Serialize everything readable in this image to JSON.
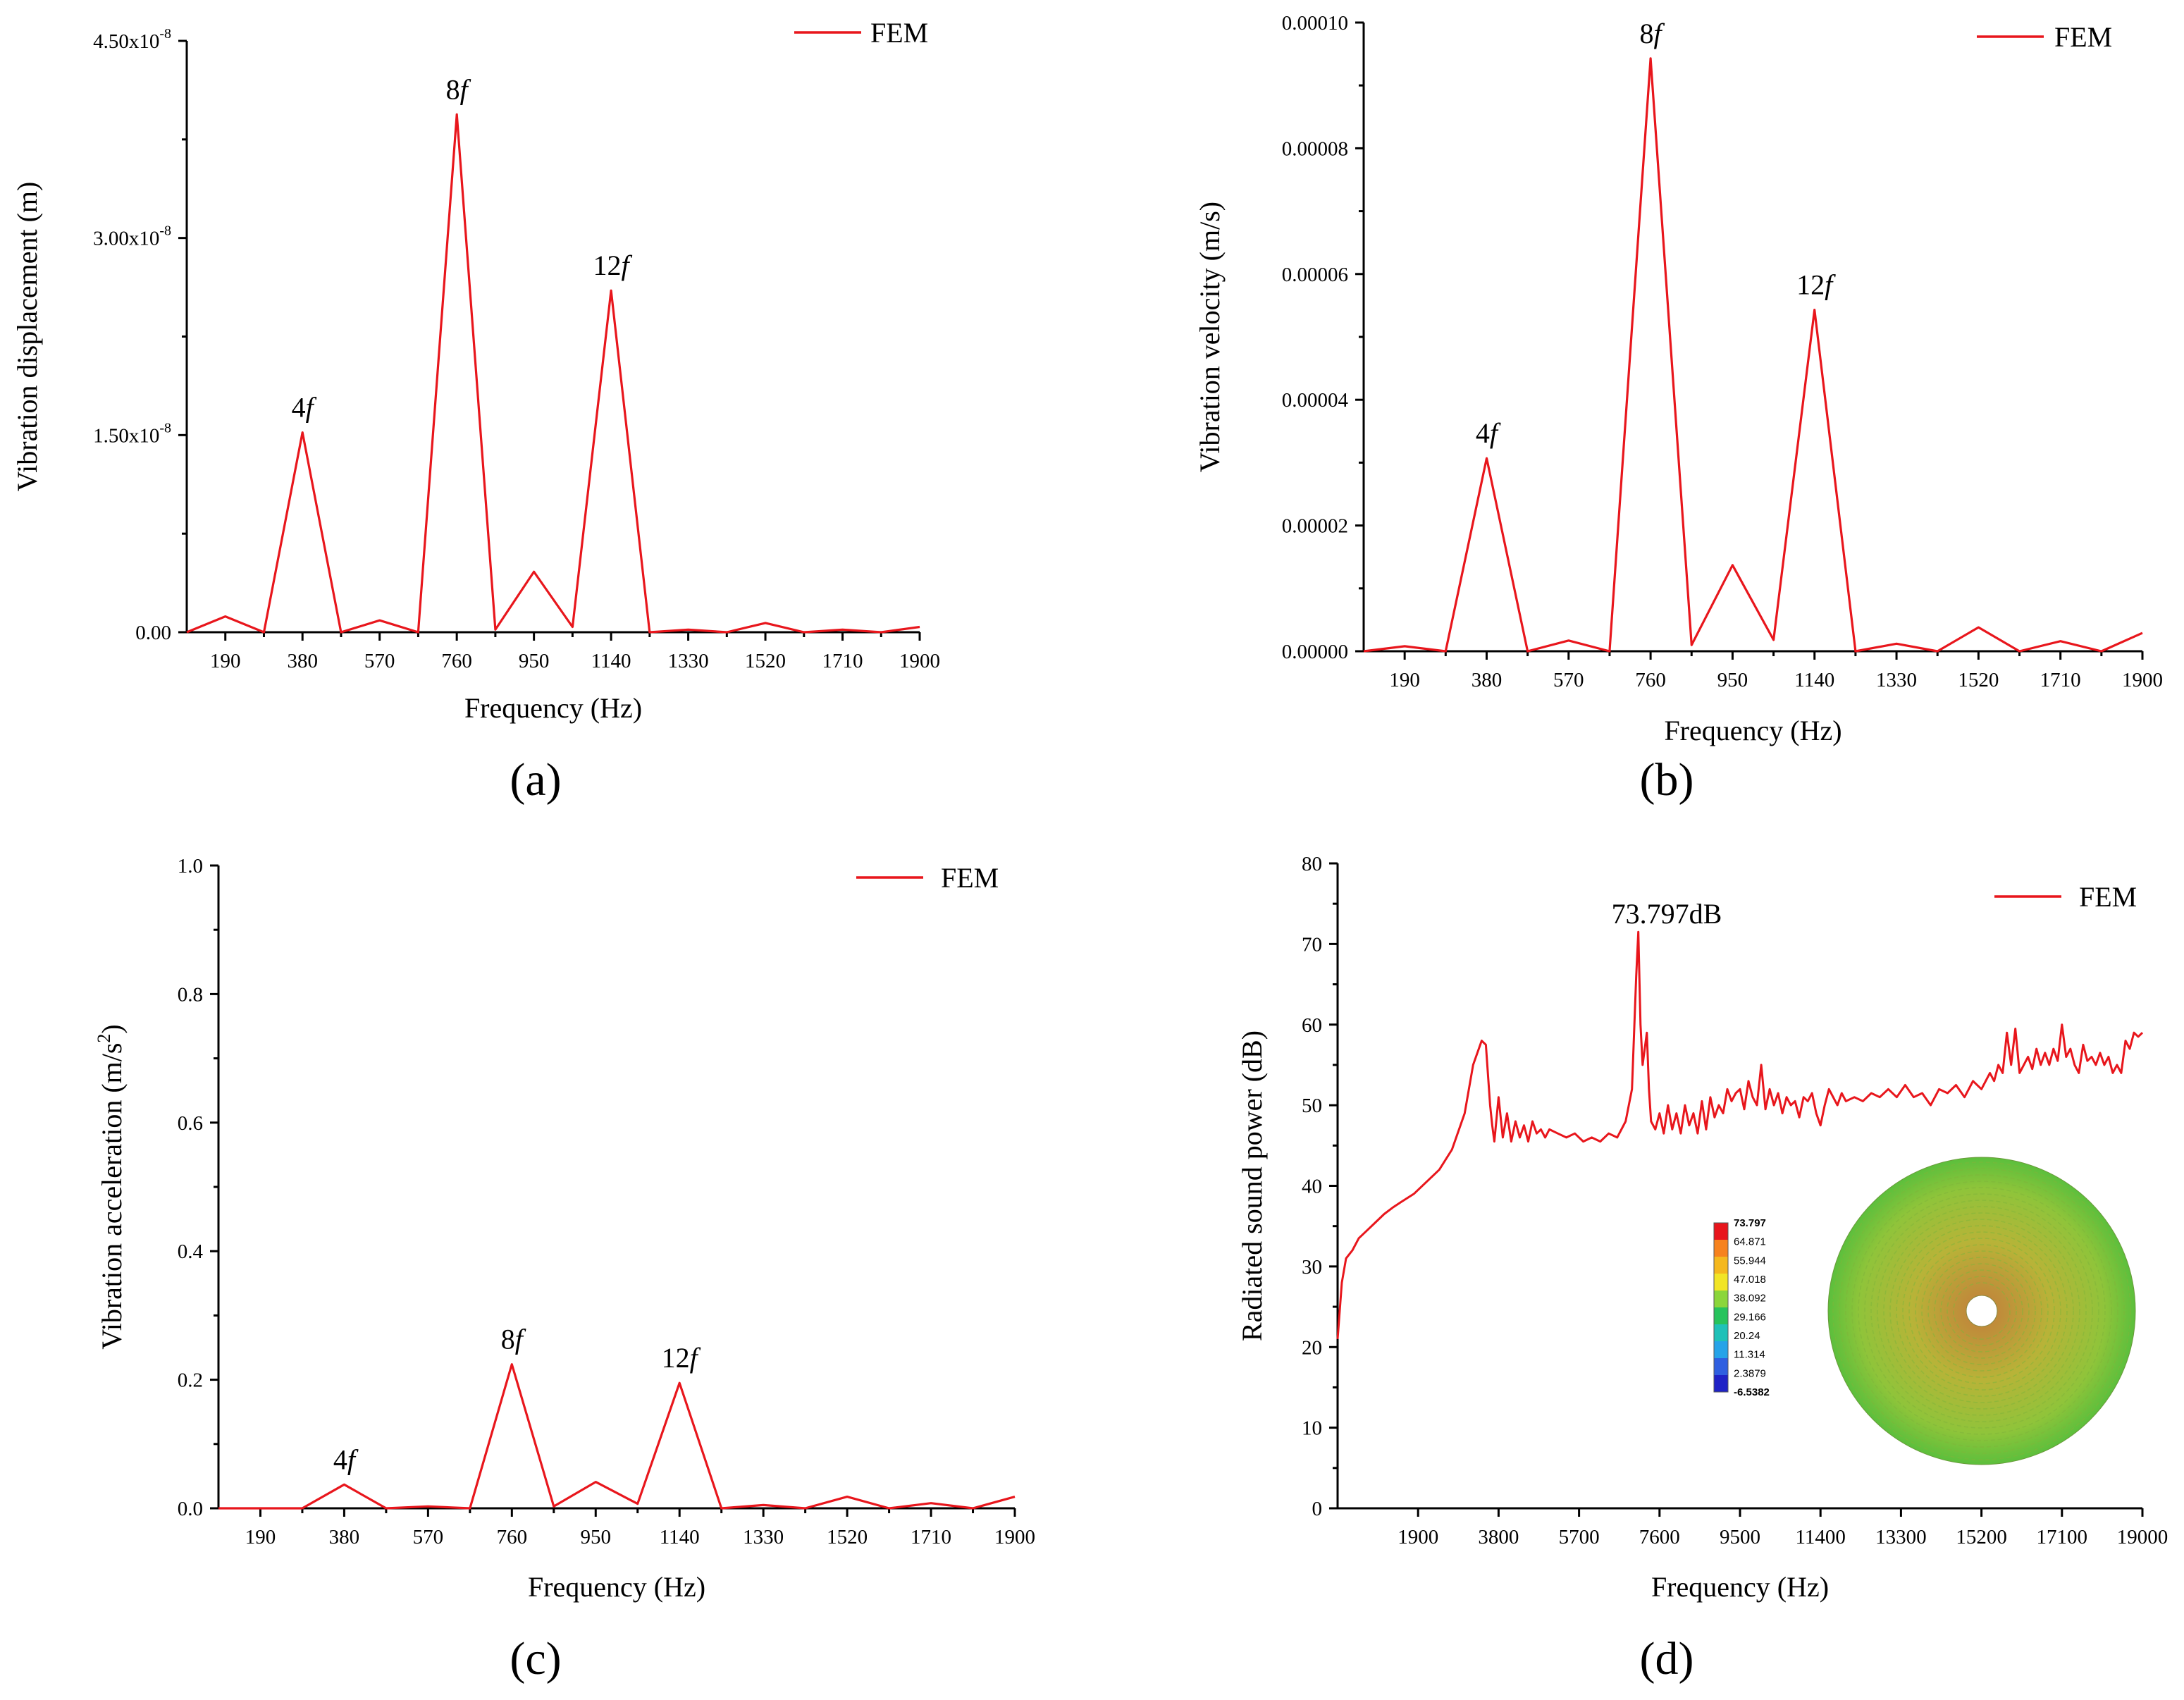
{
  "panels": [
    {
      "label": "(a)",
      "annotations": [
        {
          "text": "4",
          "italic": "f",
          "x": 380
        },
        {
          "text": "8",
          "italic": "f",
          "x": 760
        },
        {
          "text": "12",
          "italic": "f",
          "x": 1140
        }
      ]
    },
    {
      "label": "(b)",
      "annotations": [
        {
          "text": "4",
          "italic": "f",
          "x": 380
        },
        {
          "text": "8",
          "italic": "f",
          "x": 760
        },
        {
          "text": "12",
          "italic": "f",
          "x": 1140
        }
      ]
    },
    {
      "label": "(c)",
      "annotations": [
        {
          "text": "4",
          "italic": "f",
          "x": 380
        },
        {
          "text": "8",
          "italic": "f",
          "x": 760
        },
        {
          "text": "12",
          "italic": "f",
          "x": 1140
        }
      ]
    },
    {
      "label": "(d)",
      "annotations": [
        {
          "text": "73.797dB",
          "x": 7147
        }
      ],
      "colorbar": {
        "values": [
          "73.797",
          "64.871",
          "55.944",
          "47.018",
          "38.092",
          "29.166",
          "20.24",
          "11.314",
          "2.3879",
          "-6.5382"
        ],
        "colors": [
          "#e8151c",
          "#f7821e",
          "#f5b81e",
          "#f2e526",
          "#8bd63b",
          "#27c35c",
          "#1fc1b8",
          "#26a3e8",
          "#2f5fe0",
          "#1f22c6"
        ]
      },
      "inset_description": "annular disk contour plot",
      "inset_colors": [
        "#8fc43a",
        "#b8b338",
        "#c08a3a",
        "#5cbf3c"
      ]
    }
  ],
  "chart_data": [
    {
      "type": "line",
      "xlabel": "Frequency (Hz)",
      "ylabel": "Vibration displacement (m)",
      "xlim": [
        95,
        1900
      ],
      "ylim": [
        0,
        4.5e-08
      ],
      "xticks": [
        190,
        380,
        570,
        760,
        950,
        1140,
        1330,
        1520,
        1710,
        1900
      ],
      "xtick_labels": [
        "190",
        "380",
        "570",
        "760",
        "950",
        "1140",
        "1330",
        "1520",
        "1710",
        "1900"
      ],
      "yticks": [
        0,
        1.5e-08,
        3e-08,
        4.5e-08
      ],
      "ytick_labels": [
        {
          "mant": "0.00",
          "exp": ""
        },
        {
          "mant": "1.50x10",
          "exp": "-8"
        },
        {
          "mant": "3.00x10",
          "exp": "-8"
        },
        {
          "mant": "4.50x10",
          "exp": "-8"
        }
      ],
      "series": [
        {
          "name": "FEM",
          "color": "#e8161c",
          "x": [
            95,
            190,
            285,
            380,
            475,
            570,
            665,
            760,
            855,
            950,
            1045,
            1140,
            1235,
            1330,
            1425,
            1520,
            1615,
            1710,
            1805,
            1900
          ],
          "y": [
            0,
            1.2e-09,
            0,
            1.52e-08,
            0,
            9e-10,
            0,
            3.94e-08,
            2e-10,
            4.6e-09,
            4e-10,
            2.6e-08,
            0,
            2e-10,
            0,
            7e-10,
            0,
            2e-10,
            0,
            4e-10
          ]
        }
      ],
      "legend": "top-right"
    },
    {
      "type": "line",
      "xlabel": "Frequency (Hz)",
      "ylabel": "Vibration velocity (m/s)",
      "xlim": [
        95,
        1900
      ],
      "ylim": [
        0,
        0.0001
      ],
      "xticks": [
        190,
        380,
        570,
        760,
        950,
        1140,
        1330,
        1520,
        1710,
        1900
      ],
      "xtick_labels": [
        "190",
        "380",
        "570",
        "760",
        "950",
        "1140",
        "1330",
        "1520",
        "1710",
        "1900"
      ],
      "yticks": [
        0,
        2e-05,
        4e-05,
        6e-05,
        8e-05,
        0.0001
      ],
      "ytick_labels": [
        "0.00000",
        "0.00002",
        "0.00004",
        "0.00006",
        "0.00008",
        "0.00010"
      ],
      "series": [
        {
          "name": "FEM",
          "color": "#e8161c",
          "x": [
            95,
            190,
            285,
            380,
            475,
            570,
            665,
            760,
            855,
            950,
            1045,
            1140,
            1235,
            1330,
            1425,
            1520,
            1615,
            1710,
            1805,
            1900
          ],
          "y": [
            0,
            8e-07,
            0,
            3.07e-05,
            0,
            1.7e-06,
            0,
            9.43e-05,
            1e-06,
            1.37e-05,
            1.8e-06,
            5.43e-05,
            0,
            1.2e-06,
            0,
            3.8e-06,
            0,
            1.6e-06,
            0,
            2.9e-06
          ]
        }
      ],
      "legend": "top-right"
    },
    {
      "type": "line",
      "xlabel": "Frequency (Hz)",
      "ylabel": "Vibration acceleration (m/s²)",
      "ylabel_parts": {
        "main": "Vibration acceleration (m/s",
        "sup": "2",
        "tail": ")"
      },
      "xlim": [
        95,
        1900
      ],
      "ylim": [
        0,
        1.0
      ],
      "xticks": [
        190,
        380,
        570,
        760,
        950,
        1140,
        1330,
        1520,
        1710,
        1900
      ],
      "xtick_labels": [
        "190",
        "380",
        "570",
        "760",
        "950",
        "1140",
        "1330",
        "1520",
        "1710",
        "1900"
      ],
      "yticks": [
        0,
        0.2,
        0.4,
        0.6,
        0.8,
        1.0
      ],
      "ytick_labels": [
        "0.0",
        "0.2",
        "0.4",
        "0.6",
        "0.8",
        "1.0"
      ],
      "series": [
        {
          "name": "FEM",
          "color": "#e8161c",
          "x": [
            95,
            190,
            285,
            380,
            475,
            570,
            665,
            760,
            855,
            950,
            1045,
            1140,
            1235,
            1330,
            1425,
            1520,
            1615,
            1710,
            1805,
            1900
          ],
          "y": [
            0,
            0,
            0,
            0.037,
            0,
            0.003,
            0,
            0.224,
            0.003,
            0.041,
            0.007,
            0.195,
            0,
            0.005,
            0,
            0.018,
            0,
            0.008,
            0,
            0.018
          ]
        }
      ],
      "legend": "top-right"
    },
    {
      "type": "line",
      "xlabel": "Frequency (Hz)",
      "ylabel": "Radiated sound power (dB)",
      "xlim": [
        0,
        19000
      ],
      "ylim": [
        0,
        80
      ],
      "xticks": [
        1900,
        3800,
        5700,
        7600,
        9500,
        11400,
        13300,
        15200,
        17100,
        19000
      ],
      "xtick_labels": [
        "1900",
        "3800",
        "5700",
        "7600",
        "9500",
        "11400",
        "13300",
        "15200",
        "17100",
        "19000"
      ],
      "yticks": [
        0,
        10,
        20,
        30,
        40,
        50,
        60,
        70,
        80
      ],
      "ytick_labels": [
        "0",
        "10",
        "20",
        "30",
        "40",
        "50",
        "60",
        "70",
        "80"
      ],
      "series": [
        {
          "name": "FEM",
          "color": "#e8161c",
          "x": [
            0,
            100,
            200,
            350,
            500,
            700,
            900,
            1100,
            1300,
            1500,
            1800,
            2100,
            2400,
            2700,
            3000,
            3200,
            3400,
            3500,
            3600,
            3650,
            3700,
            3800,
            3900,
            4000,
            4100,
            4200,
            4300,
            4400,
            4500,
            4600,
            4700,
            4800,
            4900,
            5000,
            5200,
            5400,
            5600,
            5800,
            6000,
            6200,
            6400,
            6600,
            6800,
            6950,
            7050,
            7100,
            7150,
            7200,
            7300,
            7350,
            7400,
            7500,
            7600,
            7700,
            7800,
            7900,
            8000,
            8100,
            8200,
            8300,
            8400,
            8500,
            8600,
            8700,
            8800,
            8900,
            9000,
            9100,
            9200,
            9300,
            9400,
            9500,
            9600,
            9700,
            9800,
            9900,
            10000,
            10100,
            10200,
            10300,
            10400,
            10500,
            10600,
            10700,
            10800,
            10900,
            11000,
            11100,
            11200,
            11300,
            11400,
            11500,
            11600,
            11700,
            11800,
            11900,
            12000,
            12200,
            12400,
            12600,
            12800,
            13000,
            13200,
            13400,
            13600,
            13800,
            14000,
            14200,
            14400,
            14600,
            14800,
            15000,
            15200,
            15400,
            15500,
            15600,
            15700,
            15800,
            15900,
            16000,
            16100,
            16200,
            16300,
            16400,
            16500,
            16600,
            16700,
            16800,
            16900,
            17000,
            17100,
            17200,
            17300,
            17400,
            17500,
            17600,
            17700,
            17800,
            17900,
            18000,
            18100,
            18200,
            18300,
            18400,
            18500,
            18600,
            18700,
            18800,
            18900,
            19000
          ],
          "y": [
            21,
            28,
            31,
            32,
            33.5,
            34.5,
            35.5,
            36.5,
            37.3,
            38,
            39,
            40.5,
            42,
            44.5,
            49,
            55,
            58,
            57.5,
            50,
            47.5,
            45.5,
            51,
            46,
            49,
            45.5,
            48,
            46,
            47.5,
            45.5,
            48,
            46.5,
            47,
            46,
            47,
            46.5,
            46,
            46.5,
            45.5,
            46,
            45.5,
            46.5,
            46,
            48,
            52,
            66,
            71.5,
            60,
            55,
            59,
            52,
            48,
            47,
            49,
            46.5,
            50,
            47,
            49,
            46.5,
            50,
            47.5,
            49,
            46.5,
            50.5,
            47,
            51,
            48.5,
            50,
            49,
            52,
            50.5,
            51.5,
            52,
            49.5,
            53,
            51,
            50,
            55,
            49.5,
            52,
            50,
            51.5,
            49,
            51,
            50,
            50.5,
            48.5,
            51,
            50.5,
            51.5,
            49,
            47.5,
            50,
            52,
            51,
            50,
            51.5,
            50.5,
            51,
            50.5,
            51.5,
            51,
            52,
            51,
            52.5,
            51,
            51.5,
            50,
            52,
            51.5,
            52.5,
            51,
            53,
            52,
            54,
            53,
            55,
            54,
            59,
            55,
            59.5,
            54,
            55,
            56,
            54.5,
            57,
            55,
            56.5,
            55,
            57,
            55.5,
            60,
            56,
            57,
            55,
            54,
            57.5,
            55.5,
            56,
            55,
            56.5,
            55,
            56,
            54,
            55,
            54,
            58,
            57,
            59,
            58.5,
            59
          ]
        }
      ],
      "legend": "top-right",
      "peak_label": "73.797dB"
    }
  ]
}
